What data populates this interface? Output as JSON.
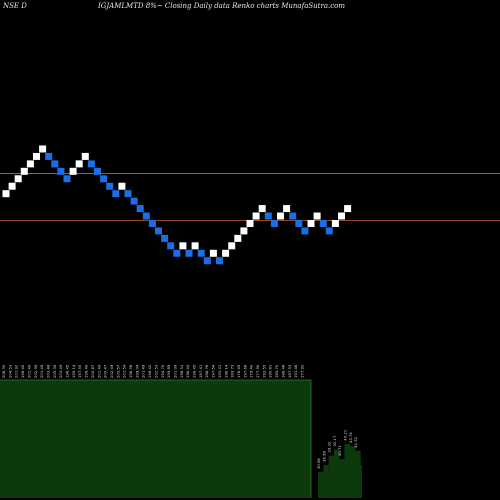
{
  "header": {
    "left": "NSE D",
    "center": "IGJAMLMTD 8%~  Closing Daily data  Renko  charts MunafaSutra.com"
  },
  "colors": {
    "background": "#000000",
    "up_brick": "#ffffff",
    "down_brick": "#1a6fe6",
    "upper_line": "#c8642a",
    "lower_line": "#c8642a",
    "volume_fill": "#0c3a0c",
    "volume_border": "#2f7a2f",
    "label_text": "#dddddd"
  },
  "chart_data": {
    "type": "renko",
    "bricks": [
      {
        "dir": "up",
        "level": 8.5
      },
      {
        "dir": "up",
        "level": 9.5
      },
      {
        "dir": "up",
        "level": 10.5
      },
      {
        "dir": "up",
        "level": 11.5
      },
      {
        "dir": "up",
        "level": 12.5
      },
      {
        "dir": "up",
        "level": 13.5
      },
      {
        "dir": "up",
        "level": 14.5
      },
      {
        "dir": "down",
        "level": 13.5
      },
      {
        "dir": "down",
        "level": 12.5
      },
      {
        "dir": "down",
        "level": 11.5
      },
      {
        "dir": "down",
        "level": 10.5
      },
      {
        "dir": "up",
        "level": 11.5
      },
      {
        "dir": "up",
        "level": 12.5
      },
      {
        "dir": "up",
        "level": 13.5
      },
      {
        "dir": "down",
        "level": 12.5
      },
      {
        "dir": "down",
        "level": 11.5
      },
      {
        "dir": "down",
        "level": 10.5
      },
      {
        "dir": "down",
        "level": 9.5
      },
      {
        "dir": "down",
        "level": 8.5
      },
      {
        "dir": "up",
        "level": 9.5
      },
      {
        "dir": "down",
        "level": 8.5
      },
      {
        "dir": "down",
        "level": 7.5
      },
      {
        "dir": "down",
        "level": 6.5
      },
      {
        "dir": "down",
        "level": 5.5
      },
      {
        "dir": "down",
        "level": 4.5
      },
      {
        "dir": "down",
        "level": 3.5
      },
      {
        "dir": "down",
        "level": 2.5
      },
      {
        "dir": "down",
        "level": 1.5
      },
      {
        "dir": "down",
        "level": 0.5
      },
      {
        "dir": "up",
        "level": 1.5
      },
      {
        "dir": "down",
        "level": 0.5
      },
      {
        "dir": "up",
        "level": 1.5
      },
      {
        "dir": "down",
        "level": 0.5
      },
      {
        "dir": "down",
        "level": -0.5
      },
      {
        "dir": "up",
        "level": 0.5
      },
      {
        "dir": "down",
        "level": -0.5
      },
      {
        "dir": "up",
        "level": 0.5
      },
      {
        "dir": "up",
        "level": 1.5
      },
      {
        "dir": "up",
        "level": 2.5
      },
      {
        "dir": "up",
        "level": 3.5
      },
      {
        "dir": "up",
        "level": 4.5
      },
      {
        "dir": "up",
        "level": 5.5
      },
      {
        "dir": "up",
        "level": 6.5
      },
      {
        "dir": "down",
        "level": 5.5
      },
      {
        "dir": "down",
        "level": 4.5
      },
      {
        "dir": "up",
        "level": 5.5
      },
      {
        "dir": "up",
        "level": 6.5
      },
      {
        "dir": "down",
        "level": 5.5
      },
      {
        "dir": "down",
        "level": 4.5
      },
      {
        "dir": "down",
        "level": 3.5
      },
      {
        "dir": "up",
        "level": 4.5
      },
      {
        "dir": "up",
        "level": 5.5
      },
      {
        "dir": "down",
        "level": 4.5
      },
      {
        "dir": "down",
        "level": 3.5
      },
      {
        "dir": "up",
        "level": 4.5
      },
      {
        "dir": "up",
        "level": 5.5
      },
      {
        "dir": "up",
        "level": 6.5
      }
    ],
    "reference_lines": [
      {
        "name": "upper",
        "level": 11.2
      },
      {
        "name": "lower",
        "level": 4.9
      }
    ],
    "brick_labels": [
      "208.35",
      "204.53",
      "201.92",
      "198.45",
      "201.40",
      "202.99",
      "201.49",
      "203.48",
      "205.39",
      "203.49",
      "196.45",
      "199.14",
      "197.50",
      "199.40",
      "200.87",
      "201.49",
      "200.47",
      "202.49",
      "203.57",
      "201.54",
      "196.58",
      "199.04",
      "201.49",
      "198.42",
      "202.53",
      "194.70",
      "199.89",
      "201.09",
      "198.51",
      "196.44",
      "199.45",
      "187.41",
      "186.76",
      "197.54",
      "193.41",
      "196.14",
      "189.73",
      "176.49",
      "197.66",
      "179.40",
      "177.90",
      "193.55",
      "190.81",
      "185.70",
      "186.46",
      "187.53",
      "191.46",
      "177.92"
    ],
    "volume_labels": [
      "30.96",
      "36.99",
      "29.32",
      "32.17",
      "40.71",
      "40.21",
      "43.74",
      "41.52"
    ],
    "volume": [
      {
        "label": "30.96",
        "level": 0.22
      },
      {
        "label": "36.99",
        "level": 0.28
      },
      {
        "label": "29.32",
        "level": 0.36
      },
      {
        "label": "32.17",
        "level": 0.41
      },
      {
        "label": "40.71",
        "level": 0.33
      },
      {
        "label": "40.21",
        "level": 0.46
      },
      {
        "label": "43.74",
        "level": 0.44
      },
      {
        "label": "41.52",
        "level": 0.4
      }
    ]
  }
}
